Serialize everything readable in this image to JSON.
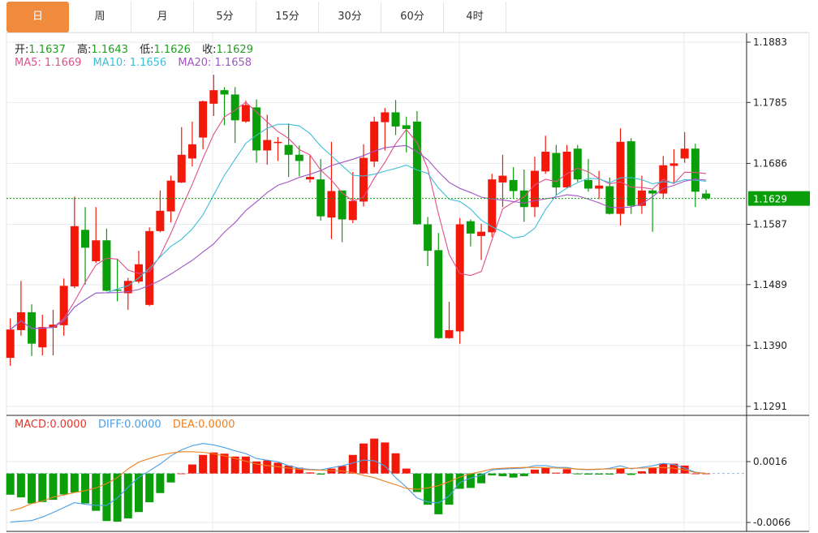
{
  "tabs": [
    {
      "label": "日",
      "active": true
    },
    {
      "label": "周"
    },
    {
      "label": "月"
    },
    {
      "label": "5分"
    },
    {
      "label": "15分"
    },
    {
      "label": "30分"
    },
    {
      "label": "60分"
    },
    {
      "label": "4时"
    }
  ],
  "legend": {
    "open_label": "开:",
    "open": "1.1637",
    "high_label": "高:",
    "high": "1.1643",
    "low_label": "低:",
    "low": "1.1626",
    "close_label": "收:",
    "close": "1.1629",
    "ma5_label": "MA5: ",
    "ma5": "1.1669",
    "ma10_label": "MA10: ",
    "ma10": "1.1656",
    "ma20_label": "MA20: ",
    "ma20": "1.1658",
    "macd_label": "MACD:",
    "macd": "0.0000",
    "diff_label": "DIFF:",
    "diff": "0.0000",
    "dea_label": "DEA:",
    "dea": "0.0000"
  },
  "colors": {
    "up": "#f2190b",
    "down": "#0a9f0a",
    "tab_active": "#f08a3c",
    "ma5": "#e0508a",
    "ma10": "#3cbfd8",
    "ma20": "#a255c4",
    "macd": "#e8332a",
    "diff": "#4aa0e8",
    "dea": "#f0801e",
    "legend_value": "#1f9e1f",
    "last_price_box": "#0a9f0a"
  },
  "chart_data": [
    {
      "type": "candlestick",
      "ylim": [
        1.1291,
        1.1883
      ],
      "y_ticks": [
        "1.1883",
        "1.1785",
        "1.1686",
        "1.1587",
        "1.1489",
        "1.1390",
        "1.1291"
      ],
      "last_price": "1.1629",
      "moving_averages": [
        "MA5",
        "MA10",
        "MA20"
      ],
      "grid": true,
      "ohlc": [
        [
          1.137,
          1.1434,
          1.1357,
          1.1416
        ],
        [
          1.1415,
          1.1495,
          1.1406,
          1.1444
        ],
        [
          1.1444,
          1.1457,
          1.1373,
          1.1393
        ],
        [
          1.1387,
          1.144,
          1.1374,
          1.142
        ],
        [
          1.1419,
          1.1448,
          1.1374,
          1.1424
        ],
        [
          1.1423,
          1.1499,
          1.1406,
          1.1487
        ],
        [
          1.1486,
          1.1632,
          1.1483,
          1.1584
        ],
        [
          1.1578,
          1.1615,
          1.1489,
          1.1549
        ],
        [
          1.1527,
          1.1615,
          1.1524,
          1.1561
        ],
        [
          1.1561,
          1.158,
          1.1478,
          1.1479
        ],
        [
          1.1481,
          1.1531,
          1.1462,
          1.1479
        ],
        [
          1.1475,
          1.15,
          1.1448,
          1.1495
        ],
        [
          1.1494,
          1.1544,
          1.1491,
          1.1522
        ],
        [
          1.1456,
          1.1582,
          1.1454,
          1.1576
        ],
        [
          1.1576,
          1.1642,
          1.1574,
          1.1609
        ],
        [
          1.1608,
          1.1666,
          1.159,
          1.1658
        ],
        [
          1.1655,
          1.1745,
          1.1654,
          1.17
        ],
        [
          1.1694,
          1.1754,
          1.1681,
          1.1717
        ],
        [
          1.1728,
          1.1788,
          1.1709,
          1.1787
        ],
        [
          1.1783,
          1.183,
          1.1763,
          1.1805
        ],
        [
          1.1805,
          1.181,
          1.1748,
          1.1798
        ],
        [
          1.1798,
          1.181,
          1.1719,
          1.1756
        ],
        [
          1.1754,
          1.1788,
          1.1752,
          1.1781
        ],
        [
          1.1777,
          1.179,
          1.1687,
          1.1707
        ],
        [
          1.1707,
          1.1765,
          1.1684,
          1.1724
        ],
        [
          1.1719,
          1.1729,
          1.169,
          1.1721
        ],
        [
          1.1716,
          1.1751,
          1.1664,
          1.17
        ],
        [
          1.17,
          1.1715,
          1.1665,
          1.169
        ],
        [
          1.166,
          1.17,
          1.1655,
          1.1664
        ],
        [
          1.166,
          1.1693,
          1.1593,
          1.16
        ],
        [
          1.1598,
          1.1721,
          1.1563,
          1.1641
        ],
        [
          1.1642,
          1.1642,
          1.1558,
          1.1595
        ],
        [
          1.1594,
          1.1672,
          1.1589,
          1.1625
        ],
        [
          1.1624,
          1.1717,
          1.1616,
          1.1695
        ],
        [
          1.1689,
          1.1762,
          1.168,
          1.1754
        ],
        [
          1.1753,
          1.1776,
          1.1707,
          1.1769
        ],
        [
          1.1769,
          1.1789,
          1.1732,
          1.1746
        ],
        [
          1.1748,
          1.1762,
          1.1704,
          1.1742
        ],
        [
          1.1754,
          1.1771,
          1.1586,
          1.1587
        ],
        [
          1.1587,
          1.1599,
          1.1519,
          1.1544
        ],
        [
          1.1545,
          1.1573,
          1.1401,
          1.1402
        ],
        [
          1.1402,
          1.1461,
          1.1401,
          1.1415
        ],
        [
          1.1413,
          1.1597,
          1.1393,
          1.1587
        ],
        [
          1.1592,
          1.1595,
          1.1551,
          1.1572
        ],
        [
          1.1568,
          1.1588,
          1.1529,
          1.1575
        ],
        [
          1.1574,
          1.1669,
          1.1566,
          1.166
        ],
        [
          1.1655,
          1.17,
          1.1615,
          1.1666
        ],
        [
          1.1659,
          1.168,
          1.163,
          1.1641
        ],
        [
          1.1642,
          1.1676,
          1.1591,
          1.1615
        ],
        [
          1.1615,
          1.1697,
          1.1599,
          1.1674
        ],
        [
          1.1673,
          1.1731,
          1.1669,
          1.1705
        ],
        [
          1.1703,
          1.1716,
          1.1634,
          1.1647
        ],
        [
          1.1647,
          1.1716,
          1.1645,
          1.1705
        ],
        [
          1.171,
          1.1716,
          1.1656,
          1.166
        ],
        [
          1.1659,
          1.1693,
          1.164,
          1.1645
        ],
        [
          1.1645,
          1.1674,
          1.1628,
          1.165
        ],
        [
          1.1649,
          1.1663,
          1.1603,
          1.1604
        ],
        [
          1.1604,
          1.1743,
          1.1585,
          1.1721
        ],
        [
          1.1722,
          1.1727,
          1.1604,
          1.1617
        ],
        [
          1.1617,
          1.1666,
          1.1604,
          1.1642
        ],
        [
          1.1642,
          1.1645,
          1.1575,
          1.1637
        ],
        [
          1.1637,
          1.1698,
          1.163,
          1.1683
        ],
        [
          1.1682,
          1.1709,
          1.1654,
          1.1686
        ],
        [
          1.1694,
          1.1737,
          1.1687,
          1.171
        ],
        [
          1.171,
          1.1718,
          1.1615,
          1.164
        ],
        [
          1.1637,
          1.1643,
          1.1626,
          1.1629
        ]
      ]
    },
    {
      "type": "bar+line",
      "ylim": [
        -0.0066,
        0.0016
      ],
      "y_ticks": [
        "0.0016",
        "-0.0066"
      ],
      "grid": true,
      "macd": [
        -0.00286,
        -0.00322,
        -0.00404,
        -0.00385,
        -0.00355,
        -0.00283,
        -0.00256,
        -0.00404,
        -0.00503,
        -0.00641,
        -0.00649,
        -0.00605,
        -0.0052,
        -0.00388,
        -0.00264,
        -0.00121,
        0.0,
        0.00121,
        0.0025,
        0.00283,
        0.00267,
        0.00228,
        0.00228,
        0.00162,
        0.00176,
        0.00146,
        0.00107,
        0.00077,
        0.00014,
        -0.00014,
        0.00066,
        0.00102,
        0.0025,
        0.00404,
        0.0047,
        0.00418,
        0.00272,
        0.00066,
        -0.0025,
        -0.00421,
        -0.0055,
        -0.00421,
        -0.00206,
        -0.00195,
        -0.00132,
        -0.00025,
        -0.00036,
        -0.00055,
        -0.00036,
        0.00052,
        0.00077,
        0.00011,
        0.00058,
        -0.00011,
        -0.00014,
        -0.00014,
        -0.00014,
        0.00066,
        -0.00019,
        0.0003,
        0.00074,
        0.00135,
        0.00132,
        0.00107,
        0.0,
        0.0
      ],
      "diff": [
        -0.00653,
        -0.00642,
        -0.00635,
        -0.00587,
        -0.00525,
        -0.00459,
        -0.00393,
        -0.00415,
        -0.00429,
        -0.00429,
        -0.0033,
        -0.00187,
        -0.00051,
        0.00037,
        0.00128,
        0.00238,
        0.00319,
        0.00374,
        0.00404,
        0.00385,
        0.00349,
        0.00305,
        0.00268,
        0.00202,
        0.0018,
        0.00158,
        0.00103,
        0.0007,
        0.00055,
        0.00048,
        0.00077,
        0.00103,
        0.00143,
        0.0018,
        0.00172,
        0.00103,
        -0.00055,
        -0.00183,
        -0.0033,
        -0.00385,
        -0.00396,
        -0.00305,
        -0.00121,
        -0.00062,
        -0.00026,
        0.00048,
        0.00059,
        0.00066,
        0.00073,
        0.00106,
        0.00106,
        0.00084,
        0.00081,
        0.00055,
        0.00051,
        0.00055,
        0.0007,
        0.00103,
        0.00062,
        0.00084,
        0.00103,
        0.00136,
        0.00121,
        0.00073,
        0.00018,
        0.0
      ],
      "dea": [
        -0.00503,
        -0.00466,
        -0.00404,
        -0.00371,
        -0.00319,
        -0.0029,
        -0.00257,
        -0.00231,
        -0.00194,
        -0.00136,
        -0.00055,
        0.00062,
        0.00154,
        0.00202,
        0.00246,
        0.00275,
        0.00293,
        0.00293,
        0.00286,
        0.00264,
        0.00238,
        0.00202,
        0.00165,
        0.00128,
        0.00106,
        0.00092,
        0.00073,
        0.00055,
        0.00048,
        0.00044,
        0.0004,
        0.00033,
        0.00011,
        -0.00026,
        -0.00055,
        -0.00106,
        -0.0015,
        -0.00202,
        -0.00213,
        -0.00194,
        -0.00165,
        -0.0011,
        -0.00048,
        -4e-05,
        0.00026,
        0.00062,
        0.0007,
        0.00077,
        0.00081,
        0.00081,
        0.00077,
        0.00073,
        0.0007,
        0.00059,
        0.00055,
        0.00059,
        0.00062,
        0.00066,
        0.0007,
        0.00073,
        0.00077,
        0.00081,
        0.0007,
        0.00048,
        0.00011,
        0.0
      ]
    }
  ]
}
